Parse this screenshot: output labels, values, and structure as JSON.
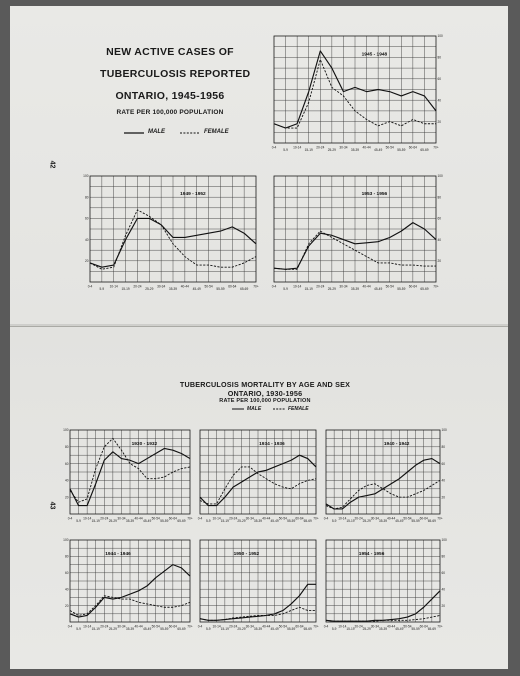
{
  "page_numbers": {
    "top": "42",
    "bottom": "43"
  },
  "top_section": {
    "title_line1": "NEW ACTIVE CASES OF",
    "title_line2": "TUBERCULOSIS REPORTED",
    "title_line3": "ONTARIO, 1945-1956",
    "subtitle": "RATE PER 100,000 POPULATION",
    "legend": {
      "male": "MALE",
      "female": "FEMALE"
    }
  },
  "bottom_section": {
    "title_line1": "TUBERCULOSIS MORTALITY BY AGE AND SEX",
    "title_line2": "ONTARIO, 1930-1956",
    "subtitle": "RATE PER 100,000 POPULATION",
    "legend": {
      "male": "MALE",
      "female": "FEMALE"
    }
  },
  "chart_data": [
    {
      "type": "line",
      "title": "1945 - 1948",
      "categories": [
        "0-4",
        "5-9",
        "10-14",
        "15-19",
        "20-24",
        "25-29",
        "30-34",
        "35-39",
        "40-44",
        "45-49",
        "50-54",
        "55-59",
        "60-64",
        "65-69",
        "70+"
      ],
      "yticks": [
        "20",
        "40",
        "60",
        "80",
        "100"
      ],
      "ylim": [
        0,
        100
      ],
      "series": [
        {
          "name": "MALE",
          "values": [
            18,
            14,
            18,
            48,
            86,
            70,
            48,
            52,
            48,
            50,
            48,
            44,
            48,
            44,
            30
          ]
        },
        {
          "name": "FEMALE",
          "values": [
            18,
            14,
            14,
            38,
            78,
            52,
            44,
            30,
            22,
            16,
            20,
            16,
            22,
            18,
            18
          ]
        }
      ]
    },
    {
      "type": "line",
      "title": "1949 - 1952",
      "categories": [
        "0-4",
        "5-9",
        "10-14",
        "15-19",
        "20-24",
        "25-29",
        "30-34",
        "35-39",
        "40-44",
        "45-49",
        "50-54",
        "55-59",
        "60-64",
        "65-69",
        "70+"
      ],
      "yticks": [
        "20",
        "40",
        "60",
        "80",
        "100"
      ],
      "ylim": [
        0,
        100
      ],
      "series": [
        {
          "name": "MALE",
          "values": [
            18,
            14,
            16,
            40,
            60,
            60,
            54,
            42,
            42,
            44,
            46,
            48,
            52,
            46,
            36
          ]
        },
        {
          "name": "FEMALE",
          "values": [
            18,
            12,
            14,
            44,
            68,
            62,
            54,
            36,
            24,
            16,
            16,
            14,
            14,
            18,
            24
          ]
        }
      ]
    },
    {
      "type": "line",
      "title": "1953 - 1956",
      "categories": [
        "0-4",
        "5-9",
        "10-14",
        "15-19",
        "20-24",
        "25-29",
        "30-34",
        "35-39",
        "40-44",
        "45-49",
        "50-54",
        "55-59",
        "60-64",
        "65-69",
        "70+"
      ],
      "yticks": [
        "20",
        "40",
        "60",
        "80",
        "100"
      ],
      "ylim": [
        0,
        100
      ],
      "series": [
        {
          "name": "MALE",
          "values": [
            13,
            12,
            13,
            34,
            46,
            44,
            40,
            36,
            37,
            38,
            42,
            48,
            56,
            50,
            40
          ]
        },
        {
          "name": "FEMALE",
          "values": [
            13,
            12,
            12,
            36,
            48,
            42,
            36,
            30,
            24,
            18,
            18,
            16,
            16,
            15,
            15
          ]
        }
      ]
    },
    {
      "type": "line",
      "title": "1930 - 1932",
      "categories": [
        "0-4",
        "5-9",
        "10-14",
        "15-19",
        "20-24",
        "25-29",
        "30-34",
        "35-39",
        "40-44",
        "45-49",
        "50-54",
        "55-59",
        "60-64",
        "65-69",
        "70+"
      ],
      "yticks": [
        "20",
        "40",
        "60",
        "80",
        "100"
      ],
      "ylim": [
        0,
        100
      ],
      "series": [
        {
          "name": "MALE",
          "values": [
            30,
            10,
            10,
            36,
            64,
            74,
            66,
            64,
            60,
            66,
            72,
            78,
            76,
            72,
            66
          ]
        },
        {
          "name": "FEMALE",
          "values": [
            28,
            14,
            18,
            54,
            80,
            90,
            76,
            60,
            54,
            42,
            42,
            44,
            50,
            54,
            56
          ]
        }
      ]
    },
    {
      "type": "line",
      "title": "1934 - 1936",
      "categories": [
        "0-4",
        "5-9",
        "10-14",
        "15-19",
        "20-24",
        "25-29",
        "30-34",
        "35-39",
        "40-44",
        "45-49",
        "50-54",
        "55-59",
        "60-64",
        "65-69",
        "70+"
      ],
      "yticks": [
        "20",
        "40",
        "60",
        "80",
        "100"
      ],
      "ylim": [
        0,
        100
      ],
      "series": [
        {
          "name": "MALE",
          "values": [
            20,
            10,
            10,
            20,
            32,
            38,
            44,
            50,
            52,
            56,
            60,
            64,
            70,
            66,
            56
          ]
        },
        {
          "name": "FEMALE",
          "values": [
            16,
            12,
            12,
            30,
            46,
            56,
            56,
            48,
            42,
            36,
            32,
            30,
            36,
            40,
            42
          ]
        }
      ]
    },
    {
      "type": "line",
      "title": "1940 - 1942",
      "categories": [
        "0-4",
        "5-9",
        "10-14",
        "15-19",
        "20-24",
        "25-29",
        "30-34",
        "35-39",
        "40-44",
        "45-49",
        "50-54",
        "55-59",
        "60-64",
        "65-69",
        "70+"
      ],
      "yticks": [
        "20",
        "40",
        "60",
        "80",
        "100"
      ],
      "ylim": [
        0,
        100
      ],
      "series": [
        {
          "name": "MALE",
          "values": [
            12,
            6,
            6,
            14,
            20,
            22,
            24,
            30,
            36,
            42,
            50,
            58,
            64,
            66,
            60
          ]
        },
        {
          "name": "FEMALE",
          "values": [
            10,
            6,
            8,
            18,
            28,
            34,
            36,
            30,
            24,
            20,
            20,
            24,
            28,
            34,
            40
          ]
        }
      ]
    },
    {
      "type": "line",
      "title": "1944 - 1946",
      "categories": [
        "0-4",
        "5-9",
        "10-14",
        "15-19",
        "20-24",
        "25-29",
        "30-34",
        "35-39",
        "40-44",
        "45-49",
        "50-54",
        "55-59",
        "60-64",
        "65-69",
        "70+"
      ],
      "yticks": [
        "20",
        "40",
        "60",
        "80",
        "100"
      ],
      "ylim": [
        0,
        100
      ],
      "series": [
        {
          "name": "MALE",
          "values": [
            10,
            6,
            8,
            18,
            30,
            28,
            30,
            34,
            38,
            44,
            54,
            62,
            70,
            66,
            56
          ]
        },
        {
          "name": "FEMALE",
          "values": [
            14,
            8,
            10,
            20,
            32,
            30,
            28,
            28,
            24,
            22,
            20,
            18,
            18,
            20,
            24
          ]
        }
      ]
    },
    {
      "type": "line",
      "title": "1950 - 1952",
      "categories": [
        "0-4",
        "5-9",
        "10-14",
        "15-19",
        "20-24",
        "25-29",
        "30-34",
        "35-39",
        "40-44",
        "45-49",
        "50-54",
        "55-59",
        "60-64",
        "65-69",
        "70+"
      ],
      "yticks": [
        "20",
        "40",
        "60",
        "80",
        "100"
      ],
      "ylim": [
        0,
        100
      ],
      "series": [
        {
          "name": "MALE",
          "values": [
            4,
            2,
            2,
            3,
            4,
            5,
            6,
            7,
            8,
            10,
            14,
            22,
            32,
            46,
            46
          ]
        },
        {
          "name": "FEMALE",
          "values": [
            4,
            2,
            2,
            3,
            5,
            6,
            7,
            8,
            8,
            8,
            10,
            14,
            18,
            14,
            14
          ]
        }
      ]
    },
    {
      "type": "line",
      "title": "1954 - 1956",
      "categories": [
        "0-4",
        "5-9",
        "10-14",
        "15-19",
        "20-24",
        "25-29",
        "30-34",
        "35-39",
        "40-44",
        "45-49",
        "50-54",
        "55-59",
        "60-64",
        "65-69",
        "70+"
      ],
      "yticks": [
        "20",
        "40",
        "60",
        "80",
        "100"
      ],
      "ylim": [
        0,
        100
      ],
      "series": [
        {
          "name": "MALE",
          "values": [
            2,
            1,
            1,
            1,
            1,
            1,
            2,
            2,
            3,
            4,
            6,
            10,
            18,
            28,
            38
          ]
        },
        {
          "name": "FEMALE",
          "values": [
            2,
            1,
            1,
            1,
            1,
            1,
            1,
            2,
            2,
            2,
            2,
            3,
            4,
            6,
            8
          ]
        }
      ]
    }
  ]
}
